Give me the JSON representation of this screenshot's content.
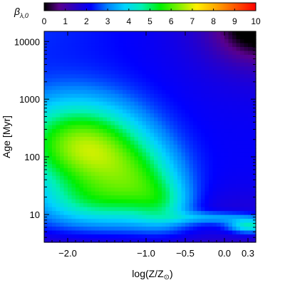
{
  "chart_data": {
    "type": "heatmap",
    "colorbar": {
      "label": "β",
      "label_subscript": "λ,0",
      "range": [
        0,
        10
      ],
      "ticks": [
        "0",
        "1",
        "2",
        "3",
        "4",
        "5",
        "6",
        "7",
        "8",
        "9",
        "10"
      ],
      "colormap": "rainbow (black-purple-blue-cyan-green-yellow-orange-red)"
    },
    "xlabel": "log(Z/Z",
    "xlabel_sub": "⊙",
    "xlabel_close": ")",
    "ylabel": "Age [Myr]",
    "xlim": [
      -2.3,
      0.4
    ],
    "ylim": [
      3.3,
      15000
    ],
    "yscale": "log",
    "x_ticks": [
      {
        "value": -2.0,
        "label": "−2.0"
      },
      {
        "value": -1.0,
        "label": "−1.0"
      },
      {
        "value": -0.5,
        "label": "−0.5"
      },
      {
        "value": 0.0,
        "label": "0.0"
      },
      {
        "value": 0.3,
        "label": "0.3"
      }
    ],
    "y_ticks": [
      {
        "value": 10,
        "label": "10"
      },
      {
        "value": 100,
        "label": "100"
      },
      {
        "value": 1000,
        "label": "1000"
      },
      {
        "value": 10000,
        "label": "10000"
      }
    ],
    "features": [
      {
        "region": "broad maximum",
        "logZ_range": [
          -2.3,
          -1.3
        ],
        "age_range_Myr": [
          30,
          800
        ],
        "beta": 5.5
      },
      {
        "region": "secondary plateau",
        "logZ_range": [
          -1.3,
          -0.6
        ],
        "age_range_Myr": [
          12,
          60
        ],
        "beta": 4.5
      },
      {
        "region": "young high-metallicity spot",
        "logZ": 0.35,
        "age_Myr": 6,
        "beta": 4.8
      },
      {
        "region": "old high-metallicity corner",
        "logZ": 0.4,
        "age_Myr": 15000,
        "beta": 0.2
      }
    ]
  }
}
